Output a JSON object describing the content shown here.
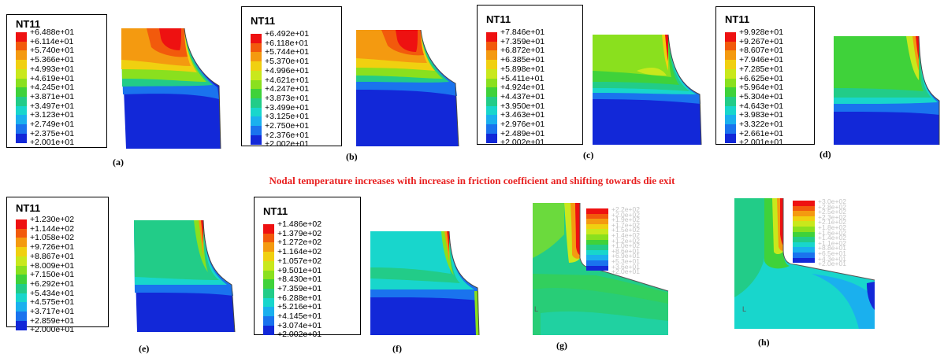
{
  "banner": "Nodal temperature increases with increase in friction coefficient and shifting towards die exit",
  "legend_colors": [
    "#ee1111",
    "#f25a0c",
    "#f49a10",
    "#f0d010",
    "#c9e81c",
    "#8ae01e",
    "#3fd23a",
    "#22cc88",
    "#18d6cc",
    "#1ab0ee",
    "#1a73ee",
    "#1228d8"
  ],
  "panels": [
    {
      "caption": "(a)",
      "legend_title": "NT11",
      "values": [
        "+6.488e+01",
        "+6.114e+01",
        "+5.740e+01",
        "+5.366e+01",
        "+4.993e+01",
        "+4.619e+01",
        "+4.245e+01",
        "+3.871e+01",
        "+3.497e+01",
        "+3.123e+01",
        "+2.749e+01",
        "+2.375e+01",
        "+2.001e+01"
      ]
    },
    {
      "caption": "(b)",
      "legend_title": "NT11",
      "values": [
        "+6.492e+01",
        "+6.118e+01",
        "+5.744e+01",
        "+5.370e+01",
        "+4.996e+01",
        "+4.621e+01",
        "+4.247e+01",
        "+3.873e+01",
        "+3.499e+01",
        "+3.125e+01",
        "+2.750e+01",
        "+2.376e+01",
        "+2.002e+01"
      ]
    },
    {
      "caption": "(c)",
      "legend_title": "NT11",
      "values": [
        "+7.846e+01",
        "+7.359e+01",
        "+6.872e+01",
        "+6.385e+01",
        "+5.898e+01",
        "+5.411e+01",
        "+4.924e+01",
        "+4.437e+01",
        "+3.950e+01",
        "+3.463e+01",
        "+2.976e+01",
        "+2.489e+01",
        "+2.002e+01"
      ]
    },
    {
      "caption": "(d)",
      "legend_title": "NT11",
      "values": [
        "+9.928e+01",
        "+9.267e+01",
        "+8.607e+01",
        "+7.946e+01",
        "+7.285e+01",
        "+6.625e+01",
        "+5.964e+01",
        "+5.304e+01",
        "+4.643e+01",
        "+3.983e+01",
        "+3.322e+01",
        "+2.661e+01",
        "+2.001e+01"
      ]
    },
    {
      "caption": "(e)",
      "legend_title": "NT11",
      "values": [
        "+1.230e+02",
        "+1.144e+02",
        "+1.058e+02",
        "+9.726e+01",
        "+8.867e+01",
        "+8.009e+01",
        "+7.150e+01",
        "+6.292e+01",
        "+5.434e+01",
        "+4.575e+01",
        "+3.717e+01",
        "+2.859e+01",
        "+2.000e+01"
      ]
    },
    {
      "caption": "(f)",
      "legend_title": "NT11",
      "values": [
        "+1.486e+02",
        "+1.379e+02",
        "+1.272e+02",
        "+1.164e+02",
        "+1.057e+02",
        "+9.501e+01",
        "+8.430e+01",
        "+7.359e+01",
        "+6.288e+01",
        "+5.216e+01",
        "+4.145e+01",
        "+3.074e+01",
        "+2.002e+01"
      ]
    },
    {
      "caption": "(g)",
      "values": [
        "+2.2e+02",
        "+2.0e+02",
        "+1.9e+02",
        "+1.7e+02",
        "+1.5e+02",
        "+1.4e+02",
        "+1.2e+02",
        "+1.0e+02",
        "+8.6e+01",
        "+6.9e+01",
        "+5.3e+01",
        "+3.6e+01",
        "+2.0e+01"
      ]
    },
    {
      "caption": "(h)",
      "values": [
        "+3.0e+02",
        "+2.8e+02",
        "+2.5e+02",
        "+2.3e+02",
        "+2.1e+02",
        "+1.8e+02",
        "+1.6e+02",
        "+1.4e+02",
        "+1.1e+02",
        "+8.8e+01",
        "+6.5e+01",
        "+4.3e+01",
        "+2.0e+01"
      ]
    }
  ]
}
